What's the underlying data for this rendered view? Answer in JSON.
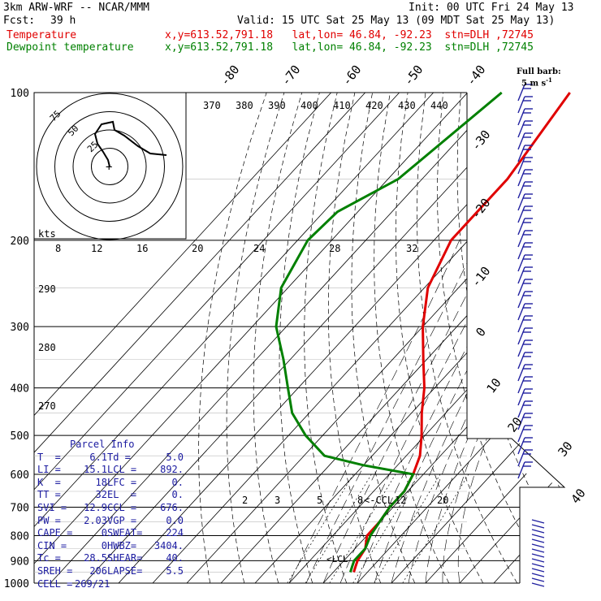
{
  "header": {
    "model": "3km ARW-WRF -- NCAR/MMM",
    "init": "Init: 00 UTC Fri 24 May 13",
    "fcst_label": "Fcst:",
    "fcst_value": "39 h",
    "valid": "Valid: 15 UTC Sat 25 May 13 (09 MDT Sat 25 May 13)",
    "temp_label": "Temperature",
    "dew_label": "Dewpoint temperature",
    "temp_loc": "x,y=613.52,791.18   lat,lon= 46.84, -92.23  stn=DLH ,72745",
    "dew_loc": "x,y=613.52,791.18   lat,lon= 46.84, -92.23  stn=DLH ,72745"
  },
  "colors": {
    "temperature": "#e00000",
    "dewpoint": "#008000",
    "barbs": "#2020a0",
    "grid": "#000000"
  },
  "barb_legend": {
    "title": "Full barb:",
    "value": "5 m s",
    "sup": "-1"
  },
  "parcel": {
    "title": "Parcel Info",
    "rows": [
      [
        "T  =",
        "6.1",
        "Td =",
        "5.0"
      ],
      [
        "LI =",
        "15.1",
        "LCL =",
        "892."
      ],
      [
        "K  =",
        "18",
        "LFC =",
        "0."
      ],
      [
        "TT =",
        "32",
        "EL  =",
        "0."
      ],
      [
        "SVI =",
        "12.9",
        "CCL =",
        "676."
      ],
      [
        "PW =",
        "2.03",
        "VGP =",
        "0.0"
      ],
      [
        "CAPE =",
        "0",
        "SWEAT=",
        "224"
      ],
      [
        "CIN =",
        "0",
        "HWBZ=",
        "3404."
      ],
      [
        "Tc =",
        "28.5",
        "SHEAR=",
        "40."
      ],
      [
        "SREH =",
        "206",
        "LAPSE=",
        "5.5"
      ],
      [
        "CELL =",
        "269/21",
        "",
        ""
      ]
    ]
  },
  "annotations": {
    "ccl": "<-CCL",
    "lcl": "<LCL",
    "hodo_units": "kts"
  },
  "hodograph": {
    "ring_labels": [
      "75",
      "50",
      "25"
    ],
    "trace": [
      [
        0,
        0
      ],
      [
        -2,
        -8
      ],
      [
        -8,
        -18
      ],
      [
        -15,
        -28
      ],
      [
        -18,
        -40
      ],
      [
        -10,
        -52
      ],
      [
        4,
        -55
      ],
      [
        6,
        -45
      ],
      [
        18,
        -38
      ],
      [
        35,
        -25
      ],
      [
        50,
        -16
      ],
      [
        70,
        -14
      ]
    ]
  },
  "chart_data": {
    "type": "line",
    "title": "Skew-T log-P sounding",
    "ylabel": "Pressure (hPa)",
    "pressure_ticks": [
      "100",
      "200",
      "300",
      "400",
      "500",
      "600",
      "700",
      "800",
      "900",
      "1000"
    ],
    "isotherm_labels": [
      "-80",
      "-70",
      "-60",
      "-50",
      "-40",
      "-30",
      "-20",
      "-10",
      "0",
      "10",
      "20",
      "30",
      "40"
    ],
    "theta_labels": [
      "370",
      "380",
      "390",
      "400",
      "410",
      "420",
      "430",
      "440"
    ],
    "theta_left_labels": [
      "290",
      "280",
      "270"
    ],
    "mixing_ratio_top": [
      "8",
      "12",
      "16",
      "20",
      "24",
      "28",
      "32"
    ],
    "mixing_ratio_bottom": [
      "2",
      "3",
      "5",
      "8",
      "12",
      "20"
    ],
    "series": [
      {
        "name": "Temperature",
        "points": [
          [
            100,
            -60
          ],
          [
            150,
            -55
          ],
          [
            200,
            -55
          ],
          [
            250,
            -49
          ],
          [
            300,
            -40
          ],
          [
            350,
            -31
          ],
          [
            400,
            -23
          ],
          [
            450,
            -17
          ],
          [
            500,
            -11
          ],
          [
            550,
            -6
          ],
          [
            600,
            -3
          ],
          [
            650,
            -1
          ],
          [
            700,
            -1
          ],
          [
            750,
            0
          ],
          [
            800,
            0
          ],
          [
            850,
            3
          ],
          [
            900,
            4
          ],
          [
            925,
            5
          ],
          [
            950,
            6
          ]
        ]
      },
      {
        "name": "Dewpoint temperature",
        "points": [
          [
            100,
            -80
          ],
          [
            150,
            -87
          ],
          [
            175,
            -96
          ],
          [
            200,
            -97
          ],
          [
            250,
            -92
          ],
          [
            300,
            -83
          ],
          [
            350,
            -72
          ],
          [
            400,
            -63
          ],
          [
            450,
            -55
          ],
          [
            500,
            -45
          ],
          [
            550,
            -34
          ],
          [
            575,
            -20
          ],
          [
            600,
            -3
          ],
          [
            650,
            -1
          ],
          [
            700,
            -1
          ],
          [
            750,
            0
          ],
          [
            800,
            1
          ],
          [
            850,
            3
          ],
          [
            900,
            3
          ],
          [
            925,
            4
          ],
          [
            950,
            5
          ]
        ]
      }
    ]
  }
}
